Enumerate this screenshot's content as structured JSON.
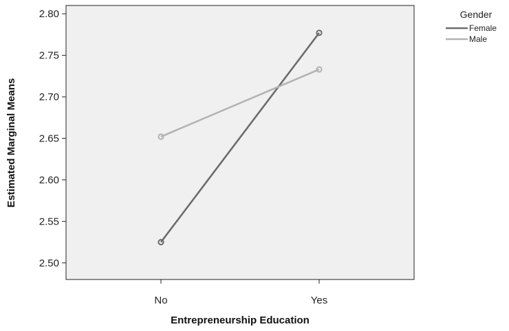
{
  "chart_data": {
    "type": "line",
    "xlabel": "Entrepreneurship Education",
    "ylabel": "Estimated Marginal Means",
    "categories": [
      "No",
      "Yes"
    ],
    "ylim": [
      2.48,
      2.81
    ],
    "yticks": [
      2.5,
      2.55,
      2.6,
      2.65,
      2.7,
      2.75,
      2.8
    ],
    "ytick_labels": [
      "2.50",
      "2.55",
      "2.60",
      "2.65",
      "2.70",
      "2.75",
      "2.80"
    ],
    "grid": false,
    "legend": {
      "title": "Gender",
      "position": "top-right outside"
    },
    "series": [
      {
        "name": "Female",
        "values": [
          2.525,
          2.777
        ],
        "color": "#6b6b6b"
      },
      {
        "name": "Male",
        "values": [
          2.652,
          2.733
        ],
        "color": "#b3b3b3"
      }
    ],
    "plot_background": "#f0f0f0"
  }
}
